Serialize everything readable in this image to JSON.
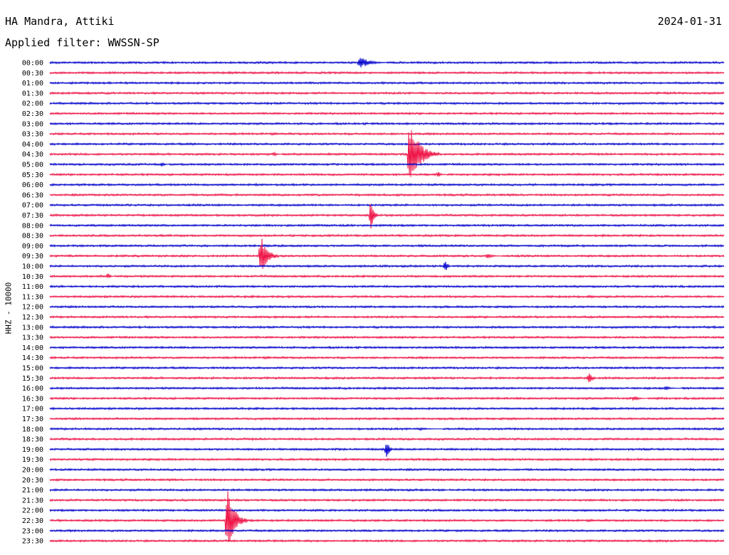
{
  "header": {
    "station": "HA Mandra, Attiki",
    "date": "2024-01-31",
    "filter": "Applied filter: WWSSN-SP"
  },
  "chart_data": {
    "type": "line",
    "title": "HA Mandra, Attiki",
    "ylabel": "HHZ - 10000",
    "colors": [
      "#0000cc",
      "#ee1144"
    ],
    "rows": [
      "00:00",
      "00:30",
      "01:00",
      "01:30",
      "02:00",
      "02:30",
      "03:00",
      "03:30",
      "04:00",
      "04:30",
      "05:00",
      "05:30",
      "06:00",
      "06:30",
      "07:00",
      "07:30",
      "08:00",
      "08:30",
      "09:00",
      "09:30",
      "10:00",
      "10:30",
      "11:00",
      "11:30",
      "12:00",
      "12:30",
      "13:00",
      "13:30",
      "14:00",
      "14:30",
      "15:00",
      "15:30",
      "16:00",
      "16:30",
      "17:00",
      "17:30",
      "18:00",
      "18:30",
      "19:00",
      "19:30",
      "20:00",
      "20:30",
      "21:00",
      "21:30",
      "22:00",
      "22:30",
      "23:00",
      "23:30"
    ],
    "row_duration_minutes": 30,
    "events": [
      {
        "row": "00:00",
        "minute": 13.8,
        "amplitude": 0.6,
        "duration": 1.2
      },
      {
        "row": "04:30",
        "minute": 10.0,
        "amplitude": 0.2,
        "duration": 0.3
      },
      {
        "row": "04:30",
        "minute": 16.0,
        "amplitude": 3.2,
        "duration": 1.3
      },
      {
        "row": "05:00",
        "minute": 5.0,
        "amplitude": 0.25,
        "duration": 0.3
      },
      {
        "row": "05:30",
        "minute": 17.3,
        "amplitude": 0.25,
        "duration": 0.4
      },
      {
        "row": "07:30",
        "minute": 14.3,
        "amplitude": 1.8,
        "duration": 0.3
      },
      {
        "row": "09:30",
        "minute": 9.4,
        "amplitude": 2.0,
        "duration": 0.8
      },
      {
        "row": "09:30",
        "minute": 19.5,
        "amplitude": 0.25,
        "duration": 0.6
      },
      {
        "row": "10:00",
        "minute": 17.6,
        "amplitude": 0.6,
        "duration": 0.3
      },
      {
        "row": "10:30",
        "minute": 2.6,
        "amplitude": 0.3,
        "duration": 0.3
      },
      {
        "row": "15:30",
        "minute": 24.0,
        "amplitude": 0.6,
        "duration": 0.4
      },
      {
        "row": "16:00",
        "minute": 27.4,
        "amplitude": 0.2,
        "duration": 0.7
      },
      {
        "row": "16:30",
        "minute": 26.0,
        "amplitude": 0.25,
        "duration": 0.6
      },
      {
        "row": "18:00",
        "minute": 16.5,
        "amplitude": 0.15,
        "duration": 1.0
      },
      {
        "row": "19:00",
        "minute": 15.0,
        "amplitude": 1.0,
        "duration": 0.3
      },
      {
        "row": "21:00",
        "minute": 17.5,
        "amplitude": 0.15,
        "duration": 0.3
      },
      {
        "row": "22:30",
        "minute": 7.9,
        "amplitude": 3.2,
        "duration": 0.9
      }
    ]
  }
}
